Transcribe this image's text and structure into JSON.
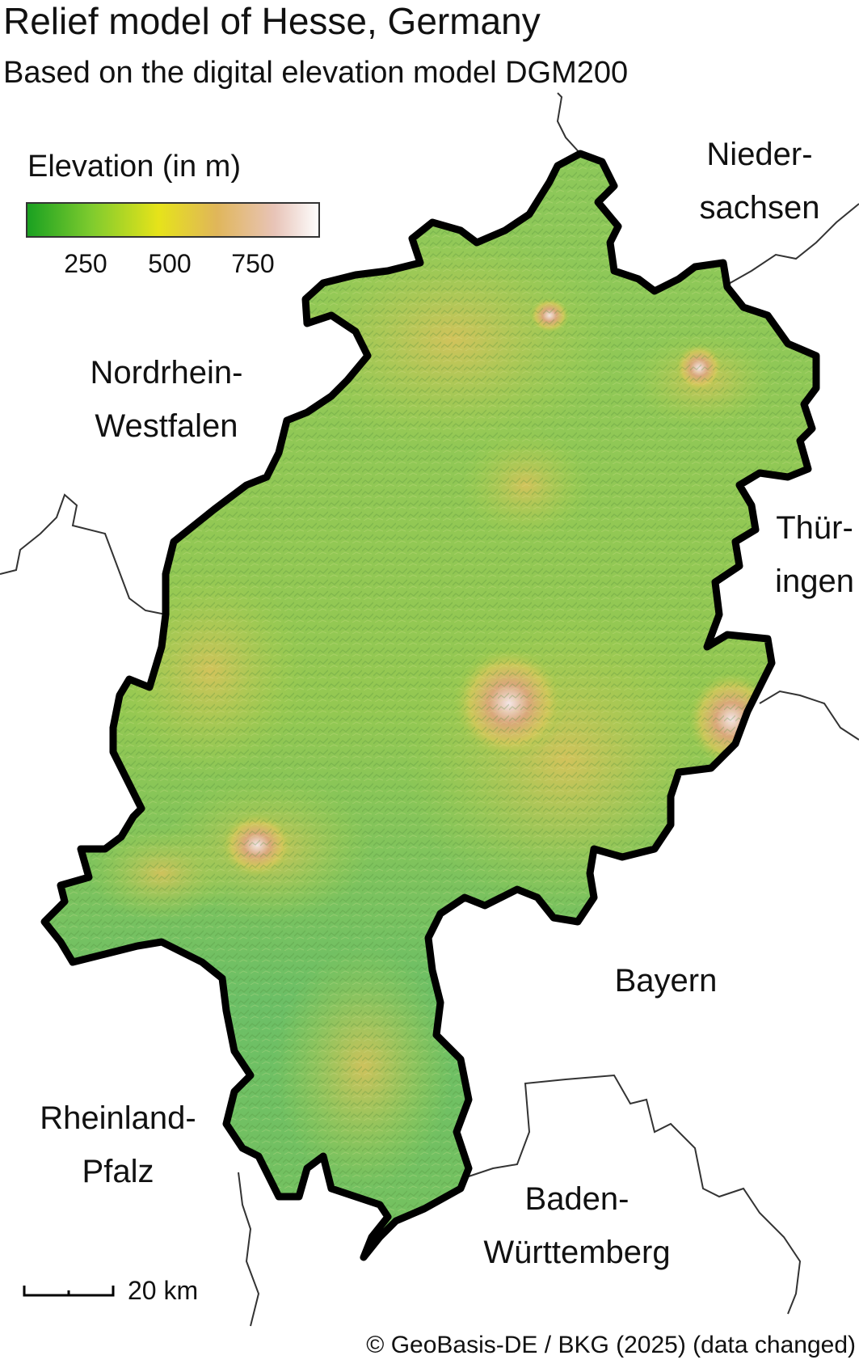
{
  "header": {
    "title": "Relief model of Hesse, Germany",
    "subtitle": "Based on the digital elevation model DGM200"
  },
  "legend": {
    "title": "Elevation (in m)",
    "ticks": [
      "250",
      "500",
      "750"
    ],
    "colors": [
      "#1aa121",
      "#7fcb2e",
      "#e6e31a",
      "#e0b65a",
      "#e8c4b8",
      "#fdfdfd"
    ]
  },
  "regions": {
    "niedersachsen": [
      "Nieder-",
      "sachsen"
    ],
    "nordrhein_westfalen": [
      "Nordrhein-",
      "Westfalen"
    ],
    "thueringen": [
      "Thür-",
      "ingen"
    ],
    "bayern": [
      "Bayern"
    ],
    "rheinland_pfalz": [
      "Rheinland-",
      "Pfalz"
    ],
    "baden_wuerttemberg": [
      "Baden-",
      "Württemberg"
    ]
  },
  "scale_bar": {
    "label": "20 km"
  },
  "credit": "© GeoBasis-DE / BKG (2025) (data changed)",
  "colors": {
    "border": "#000000",
    "neighbor_border": "#333333",
    "land_base": "#7cc25a"
  }
}
